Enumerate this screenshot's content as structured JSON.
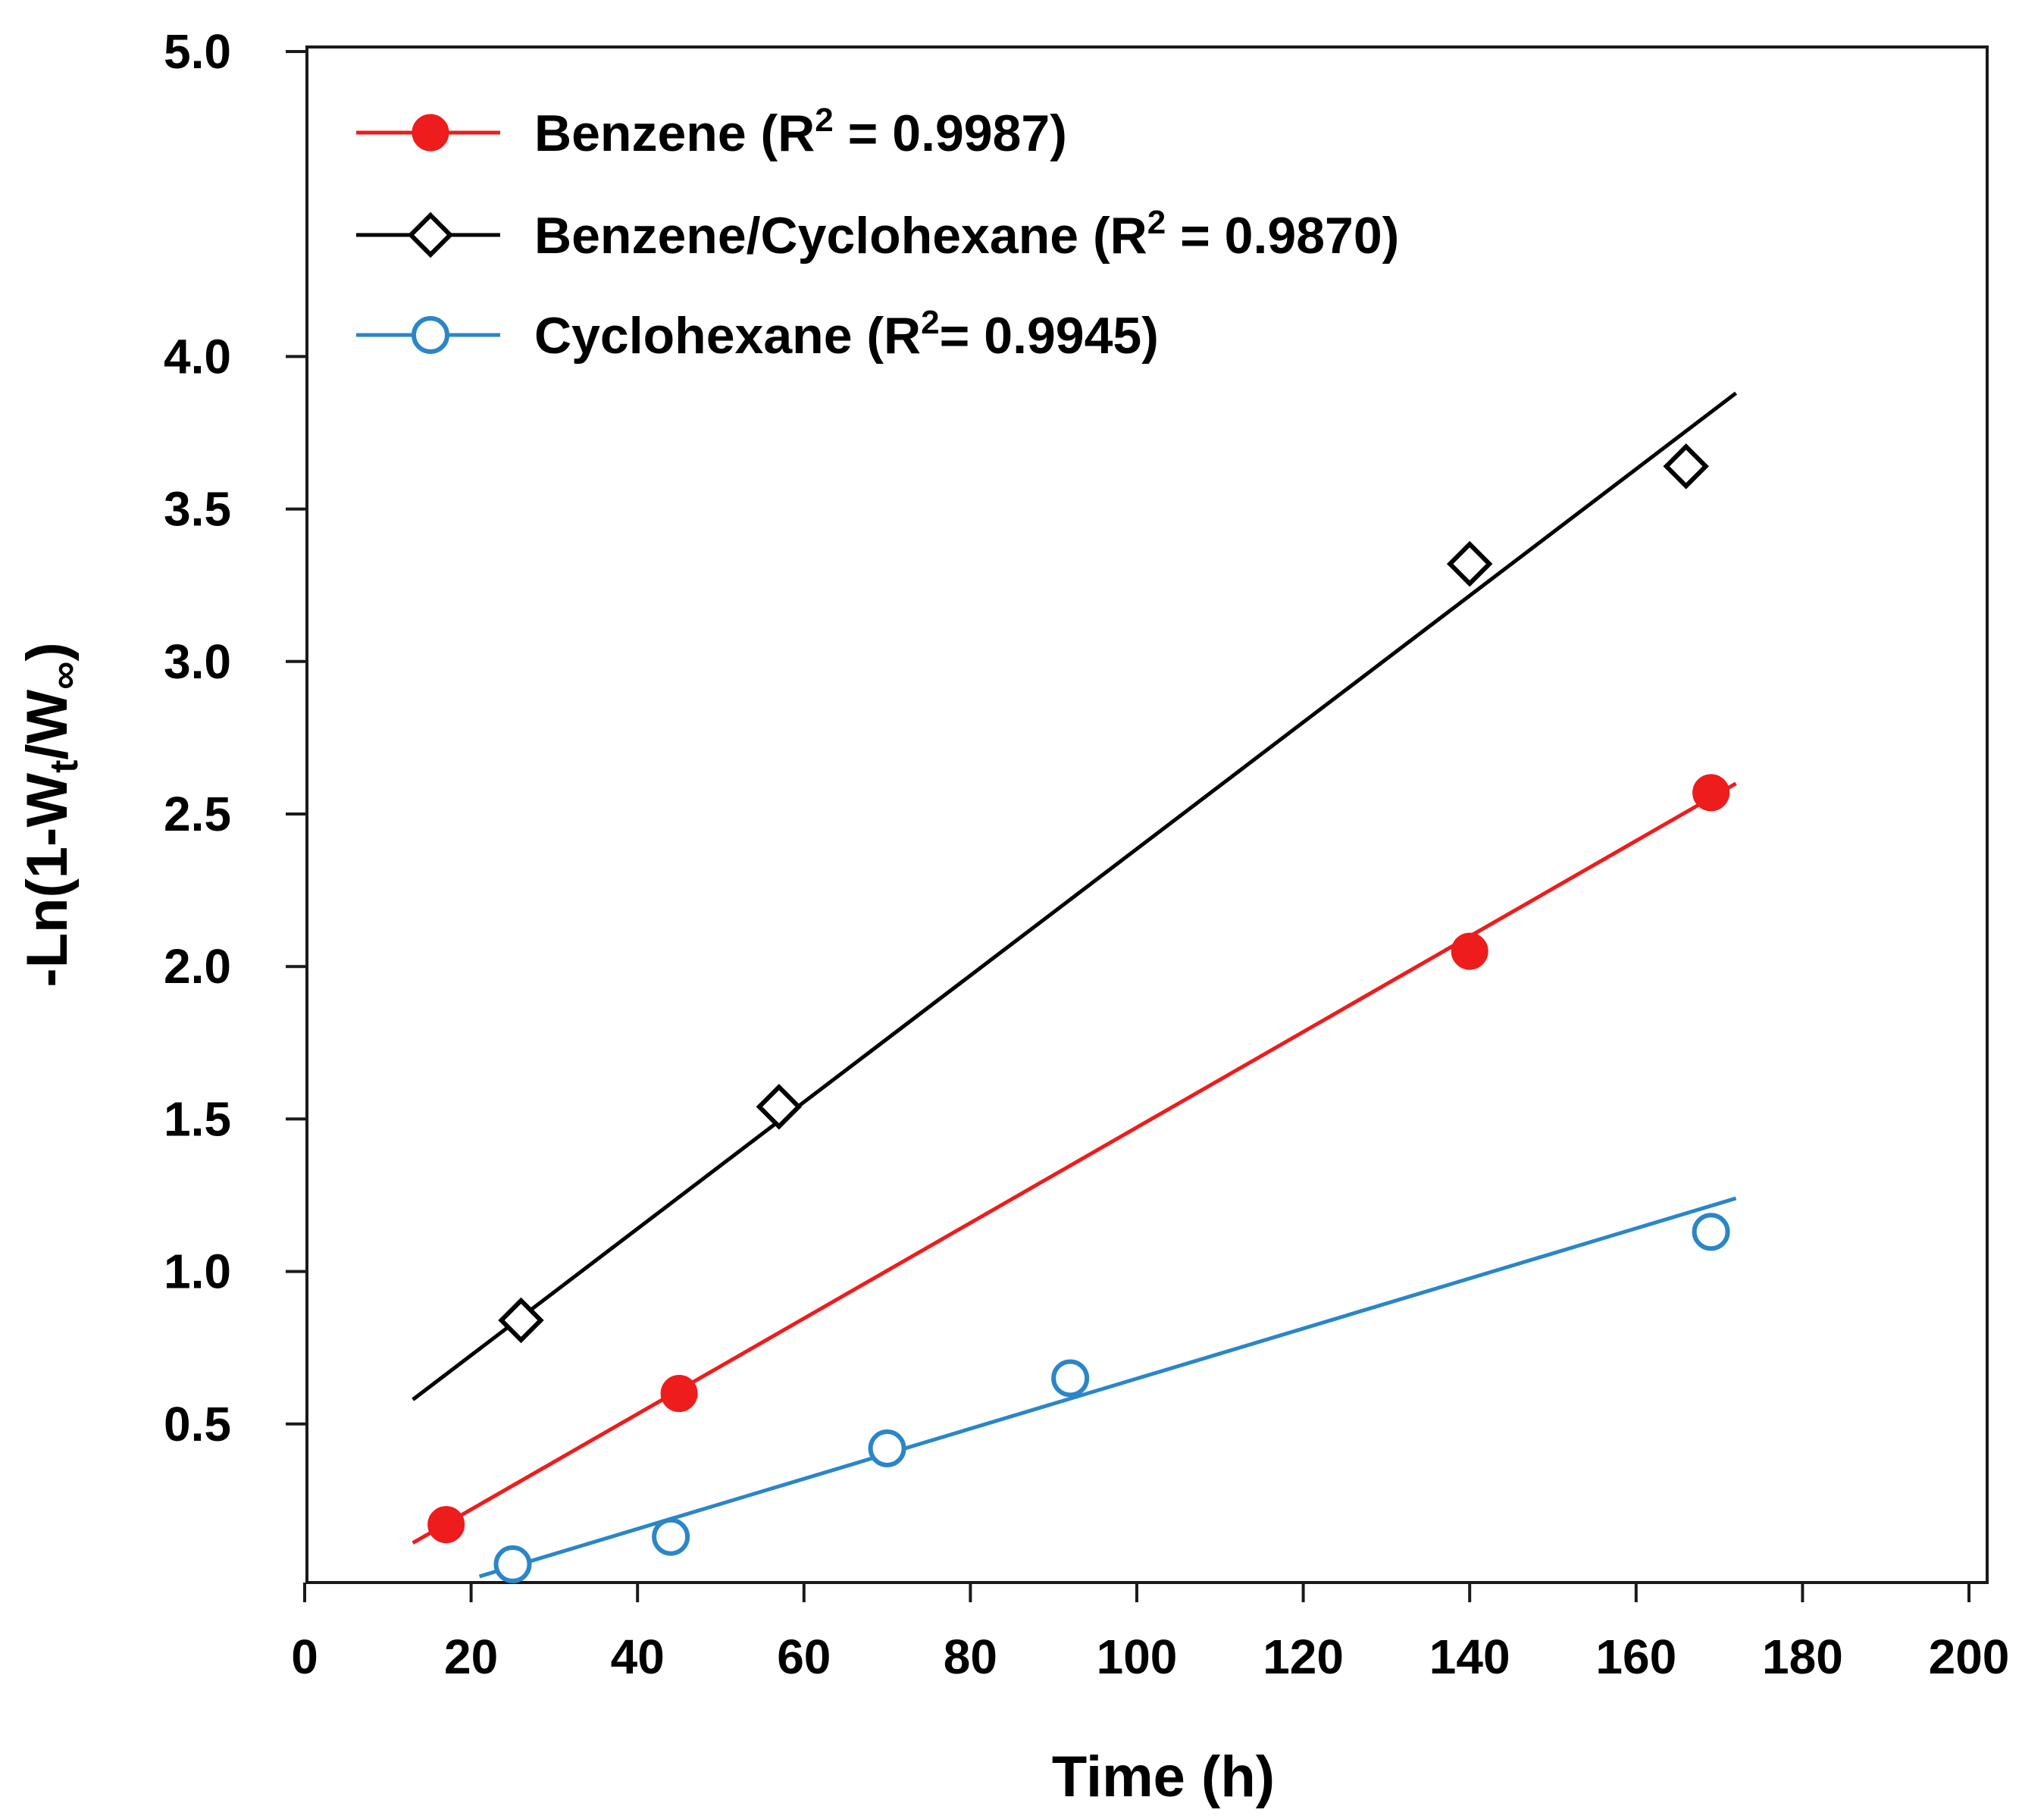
{
  "chart_data": {
    "type": "scatter",
    "xlabel": "Time (h)",
    "ylabel": "-Ln(1-Wt/W∞)",
    "xlim": [
      0,
      200
    ],
    "ylim": [
      0.0,
      5.0
    ],
    "x_ticks": [
      0,
      20,
      40,
      60,
      80,
      100,
      120,
      140,
      160,
      180,
      200
    ],
    "x_tick_labels": [
      "0",
      "20",
      "40",
      "60",
      "80",
      "100",
      "120",
      "140",
      "160",
      "180",
      "200"
    ],
    "y_ticks": [
      0.5,
      1.0,
      1.5,
      2.0,
      2.5,
      3.0,
      3.5,
      4.0,
      5.0
    ],
    "y_tick_labels": [
      "0.5",
      "1.0",
      "1.5",
      "2.0",
      "2.5",
      "3.0",
      "3.5",
      "4.0",
      "5.0"
    ],
    "legend_position": "top-left",
    "series": [
      {
        "name": "Benzene",
        "r2_label": "Benzene (R² = 0.9987)",
        "legend_name": "Benzene (R",
        "legend_r2": " = 0.9987)",
        "color": "#ee1c1c",
        "marker": "filled-circle",
        "x": [
          17,
          45,
          140,
          169
        ],
        "y": [
          0.17,
          0.6,
          2.05,
          2.57
        ],
        "fit": {
          "x": [
            13,
            172
          ],
          "y": [
            0.11,
            2.6
          ]
        }
      },
      {
        "name": "Benzene/Cyclohexane",
        "r2_label": "Benzene/Cyclohexane (R² = 0.9870)",
        "legend_name": "Benzene/Cyclohexane (R",
        "legend_r2": " = 0.9870)",
        "color": "#000000",
        "marker": "open-diamond",
        "x": [
          26,
          57,
          140,
          166
        ],
        "y": [
          0.84,
          1.54,
          3.32,
          3.64
        ],
        "fit": {
          "x": [
            13,
            172
          ],
          "y": [
            0.58,
            3.88
          ]
        }
      },
      {
        "name": "Cyclohexane",
        "r2_label": "Cyclohexane (R²= 0.9945)",
        "legend_name": "Cyclohexane (R",
        "legend_r2": "= 0.9945)",
        "color": "#2a86c8",
        "marker": "open-circle",
        "x": [
          25,
          44,
          70,
          92,
          169
        ],
        "y": [
          0.04,
          0.13,
          0.42,
          0.65,
          1.13
        ],
        "fit": {
          "x": [
            21,
            172
          ],
          "y": [
            0.0,
            1.24
          ]
        }
      }
    ]
  }
}
